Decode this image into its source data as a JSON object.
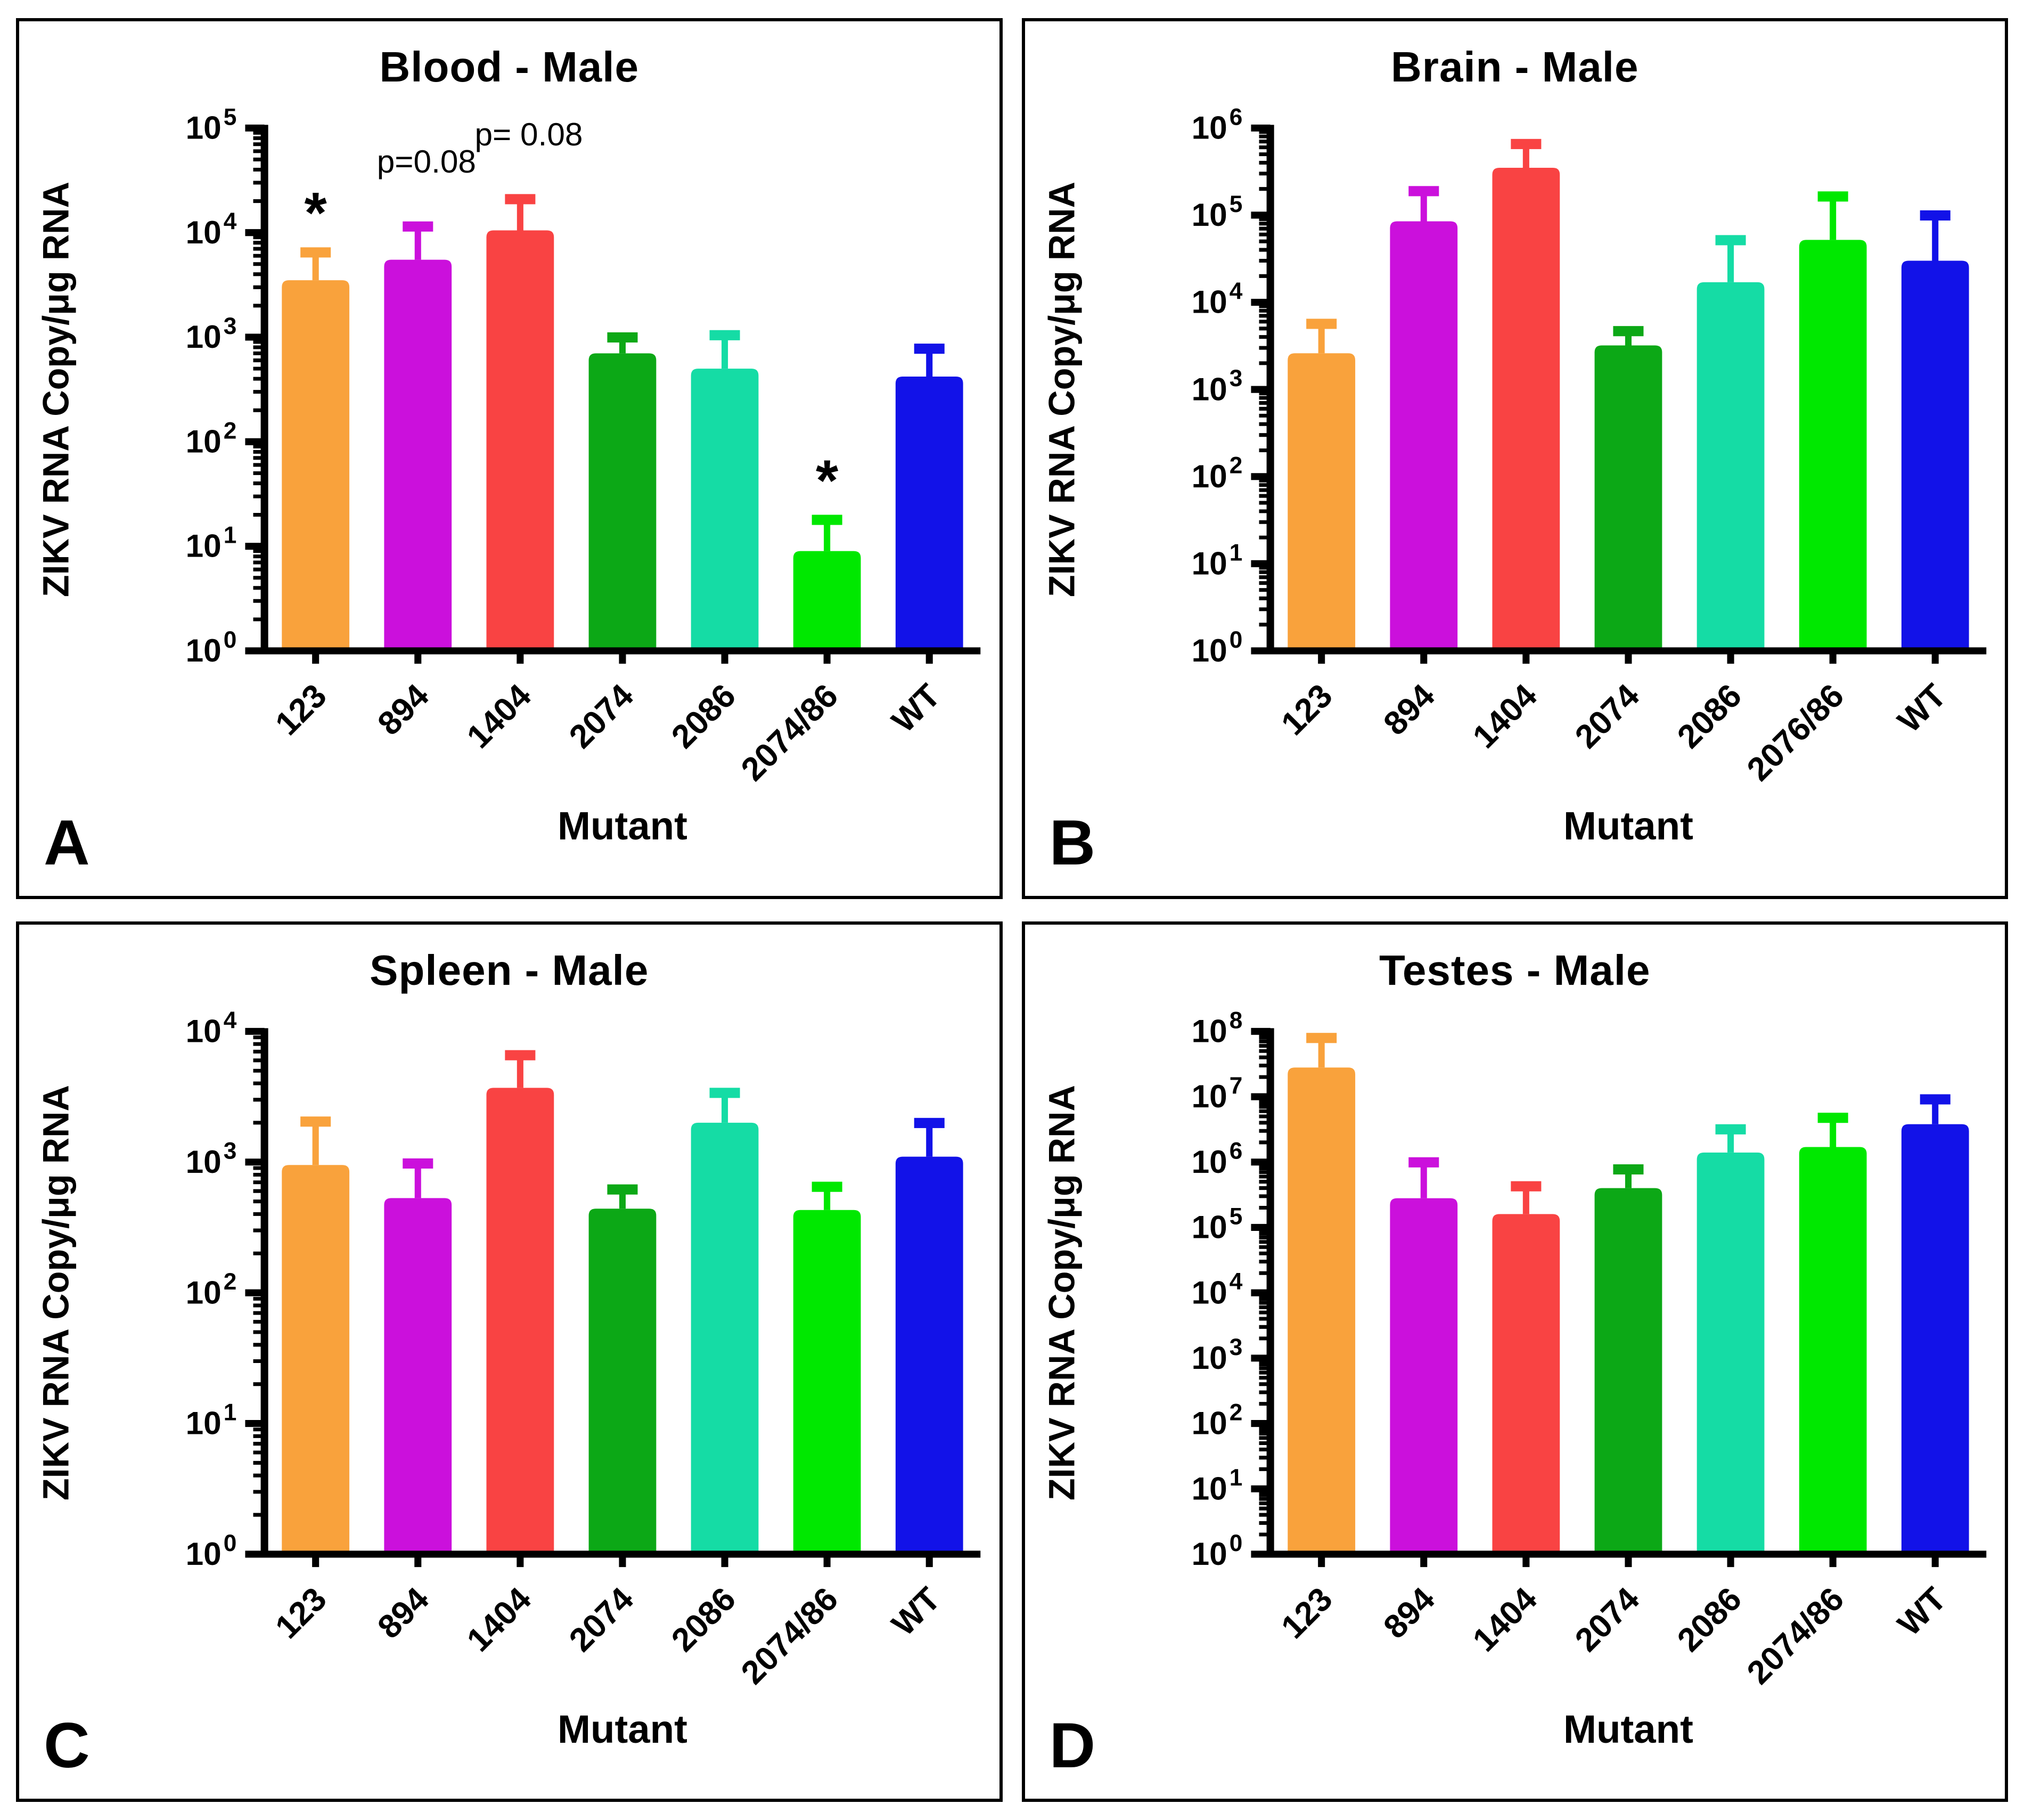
{
  "figure": {
    "background": "#ffffff",
    "border_color": "#000000"
  },
  "colors": {
    "bar_colors": [
      "#F9A23C",
      "#CB10DC",
      "#F94343",
      "#0CA816",
      "#15DCA5",
      "#00E800",
      "#1212E8"
    ],
    "axis_color": "#000000",
    "text_color": "#000000"
  },
  "chart_data": [
    {
      "type": "bar",
      "panel_letter": "A",
      "title": "Blood - Male",
      "xlabel": "Mutant",
      "ylabel": "ZIKV RNA Copy/μg RNA",
      "yscale": "log",
      "ylim": [
        1,
        100000
      ],
      "ytick_exponents": [
        0,
        1,
        2,
        3,
        4,
        5
      ],
      "categories": [
        "123",
        "894",
        "1404",
        "2074",
        "2086",
        "2074/86",
        "WT"
      ],
      "values": [
        3500,
        5500,
        10500,
        700,
        500,
        9,
        420
      ],
      "errors_top": [
        6500,
        11500,
        21000,
        1000,
        1050,
        18,
        780
      ],
      "annotations": [
        {
          "bar": 0,
          "text": "*"
        },
        {
          "bar": 1,
          "text": "p=0.08"
        },
        {
          "bar": 2,
          "text": "p= 0.08"
        },
        {
          "bar": 5,
          "text": "*"
        }
      ]
    },
    {
      "type": "bar",
      "panel_letter": "B",
      "title": "Brain - Male",
      "xlabel": "Mutant",
      "ylabel": "ZIKV RNA Copy/μg RNA",
      "yscale": "log",
      "ylim": [
        1,
        1000000
      ],
      "ytick_exponents": [
        0,
        1,
        2,
        3,
        4,
        5,
        6
      ],
      "categories": [
        "123",
        "894",
        "1404",
        "2074",
        "2086",
        "2076/86",
        "WT"
      ],
      "values": [
        2600,
        85000,
        350000,
        3200,
        17000,
        52000,
        30000
      ],
      "errors_top": [
        5700,
        190000,
        660000,
        4700,
        52000,
        165000,
        100000
      ],
      "annotations": []
    },
    {
      "type": "bar",
      "panel_letter": "C",
      "title": "Spleen - Male",
      "xlabel": "Mutant",
      "ylabel": "ZIKV RNA Copy/μg RNA",
      "yscale": "log",
      "ylim": [
        1,
        10000
      ],
      "ytick_exponents": [
        0,
        1,
        2,
        3,
        4
      ],
      "categories": [
        "123",
        "894",
        "1404",
        "2074",
        "2086",
        "2074/86",
        "WT"
      ],
      "values": [
        950,
        530,
        3700,
        440,
        2000,
        430,
        1100
      ],
      "errors_top": [
        2050,
        980,
        6600,
        620,
        3400,
        650,
        2000
      ],
      "annotations": []
    },
    {
      "type": "bar",
      "panel_letter": "D",
      "title": "Testes - Male",
      "xlabel": "Mutant",
      "ylabel": "ZIKV RNA Copy/μg RNA",
      "yscale": "log",
      "ylim": [
        1,
        100000000
      ],
      "ytick_exponents": [
        0,
        1,
        2,
        3,
        4,
        5,
        6,
        7,
        8
      ],
      "categories": [
        "123",
        "894",
        "1404",
        "2074",
        "2086",
        "2074/86",
        "WT"
      ],
      "values": [
        28000000,
        280000,
        160000,
        400000,
        1400000,
        1700000,
        3800000
      ],
      "errors_top": [
        80000000,
        1000000,
        430000,
        780000,
        3200000,
        4800000,
        9200000
      ],
      "annotations": []
    }
  ]
}
